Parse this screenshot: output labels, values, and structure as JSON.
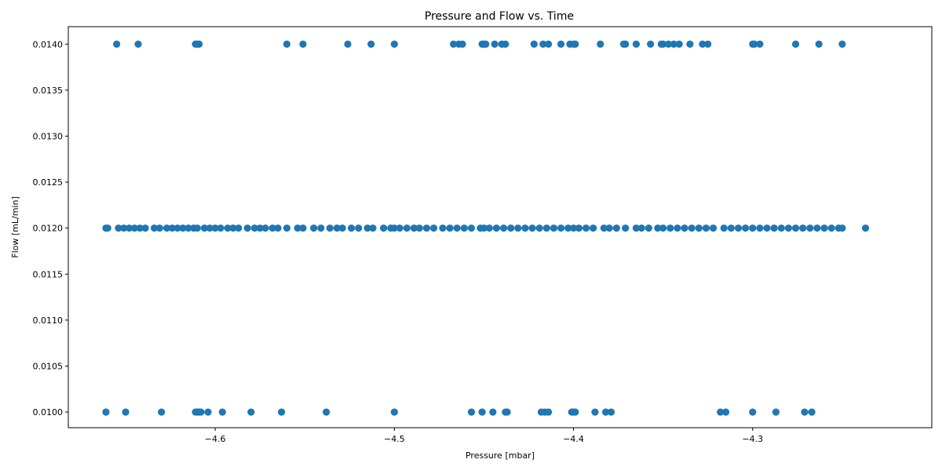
{
  "chart_data": {
    "type": "scatter",
    "title": "Pressure and Flow vs. Time",
    "xlabel": "Pressure [mbar]",
    "ylabel": "Flow [mL/min]",
    "xlim": [
      -4.682,
      -4.2
    ],
    "ylim": [
      0.00983,
      0.01419
    ],
    "xticks": [
      -4.6,
      -4.5,
      -4.4,
      -4.3
    ],
    "xtick_labels": [
      "−4.6",
      "−4.5",
      "−4.4",
      "−4.3"
    ],
    "yticks": [
      0.01,
      0.0105,
      0.011,
      0.0115,
      0.012,
      0.0125,
      0.013,
      0.0135,
      0.014
    ],
    "ytick_labels": [
      "0.0100",
      "0.0105",
      "0.0110",
      "0.0115",
      "0.0120",
      "0.0125",
      "0.0130",
      "0.0135",
      "0.0140"
    ],
    "grid": false,
    "legend": "none",
    "marker_color": "#1f77b4",
    "series": [
      {
        "points": [
          [
            -4.655,
            0.014
          ],
          [
            -4.643,
            0.014
          ],
          [
            -4.611,
            0.014
          ],
          [
            -4.61,
            0.014
          ],
          [
            -4.609,
            0.014
          ],
          [
            -4.56,
            0.014
          ],
          [
            -4.551,
            0.014
          ],
          [
            -4.526,
            0.014
          ],
          [
            -4.513,
            0.014
          ],
          [
            -4.5,
            0.014
          ],
          [
            -4.467,
            0.014
          ],
          [
            -4.464,
            0.014
          ],
          [
            -4.462,
            0.014
          ],
          [
            -4.451,
            0.014
          ],
          [
            -4.45,
            0.014
          ],
          [
            -4.449,
            0.014
          ],
          [
            -4.444,
            0.014
          ],
          [
            -4.44,
            0.014
          ],
          [
            -4.438,
            0.014
          ],
          [
            -4.422,
            0.014
          ],
          [
            -4.417,
            0.014
          ],
          [
            -4.414,
            0.014
          ],
          [
            -4.407,
            0.014
          ],
          [
            -4.402,
            0.014
          ],
          [
            -4.4,
            0.014
          ],
          [
            -4.399,
            0.014
          ],
          [
            -4.385,
            0.014
          ],
          [
            -4.372,
            0.014
          ],
          [
            -4.371,
            0.014
          ],
          [
            -4.365,
            0.014
          ],
          [
            -4.357,
            0.014
          ],
          [
            -4.351,
            0.014
          ],
          [
            -4.35,
            0.014
          ],
          [
            -4.347,
            0.014
          ],
          [
            -4.344,
            0.014
          ],
          [
            -4.341,
            0.014
          ],
          [
            -4.335,
            0.014
          ],
          [
            -4.328,
            0.014
          ],
          [
            -4.325,
            0.014
          ],
          [
            -4.3,
            0.014
          ],
          [
            -4.299,
            0.014
          ],
          [
            -4.296,
            0.014
          ],
          [
            -4.276,
            0.014
          ],
          [
            -4.263,
            0.014
          ],
          [
            -4.25,
            0.014
          ],
          [
            -4.661,
            0.012
          ],
          [
            -4.66,
            0.012
          ],
          [
            -4.654,
            0.012
          ],
          [
            -4.651,
            0.012
          ],
          [
            -4.648,
            0.012
          ],
          [
            -4.645,
            0.012
          ],
          [
            -4.642,
            0.012
          ],
          [
            -4.639,
            0.012
          ],
          [
            -4.634,
            0.012
          ],
          [
            -4.631,
            0.012
          ],
          [
            -4.627,
            0.012
          ],
          [
            -4.624,
            0.012
          ],
          [
            -4.621,
            0.012
          ],
          [
            -4.618,
            0.012
          ],
          [
            -4.615,
            0.012
          ],
          [
            -4.612,
            0.012
          ],
          [
            -4.61,
            0.012
          ],
          [
            -4.606,
            0.012
          ],
          [
            -4.603,
            0.012
          ],
          [
            -4.6,
            0.012
          ],
          [
            -4.597,
            0.012
          ],
          [
            -4.593,
            0.012
          ],
          [
            -4.59,
            0.012
          ],
          [
            -4.587,
            0.012
          ],
          [
            -4.582,
            0.012
          ],
          [
            -4.578,
            0.012
          ],
          [
            -4.575,
            0.012
          ],
          [
            -4.572,
            0.012
          ],
          [
            -4.568,
            0.012
          ],
          [
            -4.565,
            0.012
          ],
          [
            -4.56,
            0.012
          ],
          [
            -4.554,
            0.012
          ],
          [
            -4.551,
            0.012
          ],
          [
            -4.545,
            0.012
          ],
          [
            -4.541,
            0.012
          ],
          [
            -4.536,
            0.012
          ],
          [
            -4.532,
            0.012
          ],
          [
            -4.529,
            0.012
          ],
          [
            -4.524,
            0.012
          ],
          [
            -4.52,
            0.012
          ],
          [
            -4.515,
            0.012
          ],
          [
            -4.512,
            0.012
          ],
          [
            -4.506,
            0.012
          ],
          [
            -4.502,
            0.012
          ],
          [
            -4.5,
            0.012
          ],
          [
            -4.497,
            0.012
          ],
          [
            -4.493,
            0.012
          ],
          [
            -4.489,
            0.012
          ],
          [
            -4.486,
            0.012
          ],
          [
            -4.482,
            0.012
          ],
          [
            -4.478,
            0.012
          ],
          [
            -4.473,
            0.012
          ],
          [
            -4.469,
            0.012
          ],
          [
            -4.465,
            0.012
          ],
          [
            -4.461,
            0.012
          ],
          [
            -4.457,
            0.012
          ],
          [
            -4.452,
            0.012
          ],
          [
            -4.45,
            0.012
          ],
          [
            -4.447,
            0.012
          ],
          [
            -4.443,
            0.012
          ],
          [
            -4.439,
            0.012
          ],
          [
            -4.435,
            0.012
          ],
          [
            -4.431,
            0.012
          ],
          [
            -4.427,
            0.012
          ],
          [
            -4.423,
            0.012
          ],
          [
            -4.419,
            0.012
          ],
          [
            -4.415,
            0.012
          ],
          [
            -4.411,
            0.012
          ],
          [
            -4.407,
            0.012
          ],
          [
            -4.403,
            0.012
          ],
          [
            -4.4,
            0.012
          ],
          [
            -4.397,
            0.012
          ],
          [
            -4.393,
            0.012
          ],
          [
            -4.389,
            0.012
          ],
          [
            -4.383,
            0.012
          ],
          [
            -4.38,
            0.012
          ],
          [
            -4.376,
            0.012
          ],
          [
            -4.371,
            0.012
          ],
          [
            -4.365,
            0.012
          ],
          [
            -4.362,
            0.012
          ],
          [
            -4.358,
            0.012
          ],
          [
            -4.353,
            0.012
          ],
          [
            -4.35,
            0.012
          ],
          [
            -4.346,
            0.012
          ],
          [
            -4.342,
            0.012
          ],
          [
            -4.338,
            0.012
          ],
          [
            -4.334,
            0.012
          ],
          [
            -4.33,
            0.012
          ],
          [
            -4.326,
            0.012
          ],
          [
            -4.322,
            0.012
          ],
          [
            -4.316,
            0.012
          ],
          [
            -4.312,
            0.012
          ],
          [
            -4.308,
            0.012
          ],
          [
            -4.304,
            0.012
          ],
          [
            -4.3,
            0.012
          ],
          [
            -4.296,
            0.012
          ],
          [
            -4.292,
            0.012
          ],
          [
            -4.288,
            0.012
          ],
          [
            -4.284,
            0.012
          ],
          [
            -4.28,
            0.012
          ],
          [
            -4.276,
            0.012
          ],
          [
            -4.272,
            0.012
          ],
          [
            -4.268,
            0.012
          ],
          [
            -4.264,
            0.012
          ],
          [
            -4.26,
            0.012
          ],
          [
            -4.256,
            0.012
          ],
          [
            -4.252,
            0.012
          ],
          [
            -4.25,
            0.012
          ],
          [
            -4.237,
            0.012
          ],
          [
            -4.661,
            0.01
          ],
          [
            -4.65,
            0.01
          ],
          [
            -4.63,
            0.01
          ],
          [
            -4.611,
            0.01
          ],
          [
            -4.61,
            0.01
          ],
          [
            -4.609,
            0.01
          ],
          [
            -4.608,
            0.01
          ],
          [
            -4.604,
            0.01
          ],
          [
            -4.596,
            0.01
          ],
          [
            -4.58,
            0.01
          ],
          [
            -4.563,
            0.01
          ],
          [
            -4.538,
            0.01
          ],
          [
            -4.5,
            0.01
          ],
          [
            -4.457,
            0.01
          ],
          [
            -4.451,
            0.01
          ],
          [
            -4.445,
            0.01
          ],
          [
            -4.438,
            0.01
          ],
          [
            -4.437,
            0.01
          ],
          [
            -4.418,
            0.01
          ],
          [
            -4.416,
            0.01
          ],
          [
            -4.414,
            0.01
          ],
          [
            -4.401,
            0.01
          ],
          [
            -4.4,
            0.01
          ],
          [
            -4.399,
            0.01
          ],
          [
            -4.388,
            0.01
          ],
          [
            -4.382,
            0.01
          ],
          [
            -4.379,
            0.01
          ],
          [
            -4.318,
            0.01
          ],
          [
            -4.315,
            0.01
          ],
          [
            -4.3,
            0.01
          ],
          [
            -4.287,
            0.01
          ],
          [
            -4.271,
            0.01
          ],
          [
            -4.267,
            0.01
          ]
        ]
      }
    ]
  }
}
